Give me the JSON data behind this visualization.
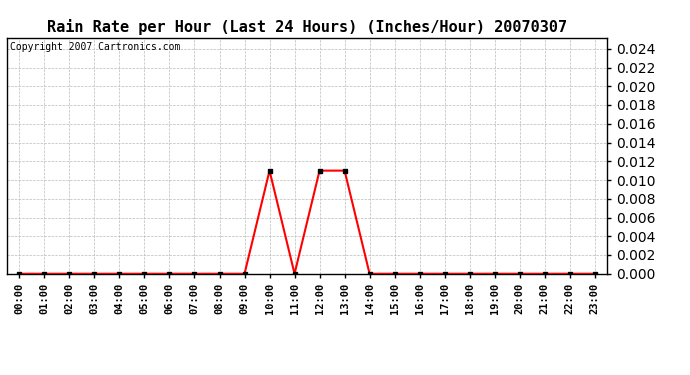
{
  "title": "Rain Rate per Hour (Last 24 Hours) (Inches/Hour) 20070307",
  "copyright_text": "Copyright 2007 Cartronics.com",
  "x_labels": [
    "00:00",
    "01:00",
    "02:00",
    "03:00",
    "04:00",
    "05:00",
    "06:00",
    "07:00",
    "08:00",
    "09:00",
    "10:00",
    "11:00",
    "12:00",
    "13:00",
    "14:00",
    "15:00",
    "16:00",
    "17:00",
    "18:00",
    "19:00",
    "20:00",
    "21:00",
    "22:00",
    "23:00"
  ],
  "x_values": [
    0,
    1,
    2,
    3,
    4,
    5,
    6,
    7,
    8,
    9,
    10,
    11,
    12,
    13,
    14,
    15,
    16,
    17,
    18,
    19,
    20,
    21,
    22,
    23
  ],
  "y_values": [
    0,
    0,
    0,
    0,
    0,
    0,
    0,
    0,
    0,
    0,
    0.011,
    0,
    0.011,
    0.011,
    0,
    0,
    0,
    0,
    0,
    0,
    0,
    0,
    0,
    0
  ],
  "line_color": "#ff0000",
  "marker": "s",
  "marker_size": 2.5,
  "marker_color": "#000000",
  "ylim": [
    0,
    0.0252
  ],
  "yticks": [
    0.0,
    0.002,
    0.004,
    0.006,
    0.008,
    0.01,
    0.012,
    0.014,
    0.016,
    0.018,
    0.02,
    0.022,
    0.024
  ],
  "grid_color": "#bbbbbb",
  "grid_style": "--",
  "background_color": "#ffffff",
  "title_fontsize": 11,
  "copyright_fontsize": 7,
  "tick_fontsize": 7.5,
  "ytick_fontsize": 9,
  "ytick_fontweight": "bold"
}
